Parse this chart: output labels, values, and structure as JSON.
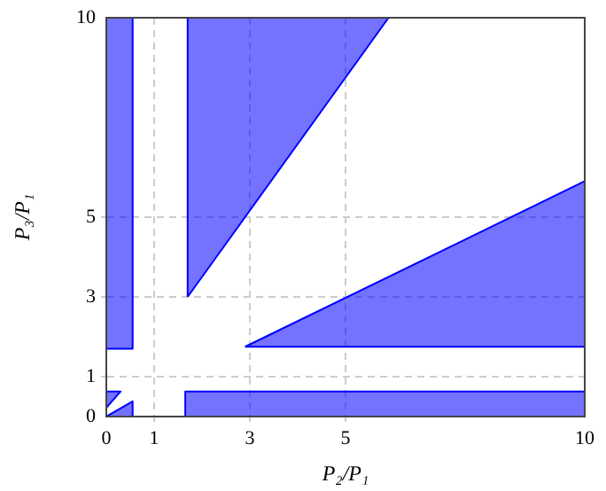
{
  "chart_data": {
    "type": "area",
    "xlabel": "P₂/P₁",
    "ylabel": "P₃/P₁",
    "xlim": [
      0,
      10
    ],
    "ylim": [
      0,
      10
    ],
    "xticks": [
      0,
      1,
      3,
      5,
      10
    ],
    "yticks": [
      0,
      1,
      3,
      5,
      10
    ],
    "grid": true,
    "legend": false,
    "series": [
      {
        "color": "#0000ff",
        "x": [
          0,
          0,
          0.3,
          0
        ],
        "values": [
          0.22,
          0.63,
          0.63,
          0.22
        ]
      },
      {
        "color": "#0000ff",
        "x": [
          0,
          0.55,
          0.55,
          0
        ],
        "values": [
          0,
          0.38,
          0,
          0
        ]
      },
      {
        "color": "#0000ff",
        "x": [
          0,
          0,
          0.55,
          0.55,
          0
        ],
        "values": [
          1.7,
          10,
          10,
          1.7,
          1.7
        ]
      },
      {
        "color": "#0000ff",
        "x": [
          1.7,
          1.7,
          5.9,
          1.7
        ],
        "values": [
          3,
          10,
          10,
          3
        ]
      },
      {
        "color": "#0000ff",
        "x": [
          2.9,
          10,
          10,
          2.9
        ],
        "values": [
          1.75,
          5.9,
          1.75,
          1.75
        ]
      },
      {
        "color": "#0000ff",
        "x": [
          1.65,
          1.65,
          10,
          10,
          1.65
        ],
        "values": [
          0,
          0.63,
          0.63,
          0,
          0
        ]
      }
    ]
  }
}
